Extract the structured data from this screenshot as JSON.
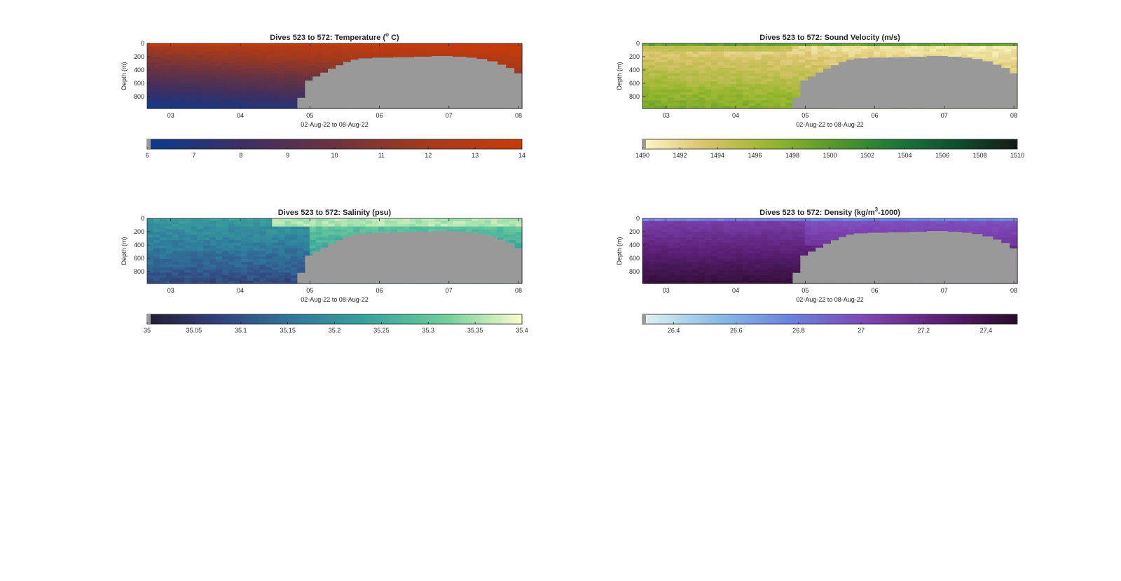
{
  "chart_data": [
    {
      "type": "heatmap",
      "title_prefix": "Dives 523 to 572: Temperature (",
      "title_sup": "o",
      "title_suffix": " C)",
      "ylabel": "Depth (m)",
      "xlabel": "02-Aug-22 to 08-Aug-22",
      "x_ticks": [
        "03",
        "04",
        "05",
        "06",
        "07",
        "08"
      ],
      "y_ticks": [
        "0",
        "200",
        "400",
        "600",
        "800"
      ],
      "x_range": [
        2.66,
        8.05
      ],
      "y_range": [
        0,
        980
      ],
      "colorbar": {
        "min": 6,
        "max": 14,
        "ticks": [
          "6",
          "7",
          "8",
          "9",
          "10",
          "11",
          "12",
          "13",
          "14"
        ],
        "colors": [
          "#0b3a8f",
          "#3b2f63",
          "#6a3340",
          "#a63a1c",
          "#c83b0a"
        ]
      },
      "field": "temperature"
    },
    {
      "type": "heatmap",
      "title_prefix": "Dives 523 to 572: Sound Velocity (m/s)",
      "title_sup": "",
      "title_suffix": "",
      "ylabel": "Depth (m)",
      "xlabel": "02-Aug-22 to 08-Aug-22",
      "x_ticks": [
        "03",
        "04",
        "05",
        "06",
        "07",
        "08"
      ],
      "y_ticks": [
        "0",
        "200",
        "400",
        "600",
        "800"
      ],
      "x_range": [
        2.66,
        8.05
      ],
      "y_range": [
        0,
        980
      ],
      "colorbar": {
        "min": 1490,
        "max": 1510,
        "ticks": [
          "1490",
          "1492",
          "1494",
          "1496",
          "1498",
          "1500",
          "1502",
          "1504",
          "1506",
          "1508",
          "1510"
        ],
        "colors": [
          "#fdf7c7",
          "#d9c36a",
          "#9ab82f",
          "#5a9a2a",
          "#1f7a3a",
          "#0e4f30",
          "#161a14"
        ]
      },
      "field": "sound"
    },
    {
      "type": "heatmap",
      "title_prefix": "Dives 523 to 572: Salinity (psu)",
      "title_sup": "",
      "title_suffix": "",
      "ylabel": "Depth (m)",
      "xlabel": "02-Aug-22 to 08-Aug-22",
      "x_ticks": [
        "03",
        "04",
        "05",
        "06",
        "07",
        "08"
      ],
      "y_ticks": [
        "0",
        "200",
        "400",
        "600",
        "800"
      ],
      "x_range": [
        2.66,
        8.05
      ],
      "y_range": [
        0,
        980
      ],
      "colorbar": {
        "min": 35,
        "max": 35.4,
        "ticks": [
          "35",
          "35.05",
          "35.1",
          "35.15",
          "35.2",
          "35.25",
          "35.3",
          "35.35",
          "35.4"
        ],
        "colors": [
          "#231d33",
          "#33437f",
          "#2f7b9c",
          "#3aa59c",
          "#6fcf9c",
          "#fdfcd0"
        ]
      },
      "field": "salinity"
    },
    {
      "type": "heatmap",
      "title_prefix": "Dives 523 to 572: Density (kg/m",
      "title_sup": "3",
      "title_suffix": "-1000)",
      "ylabel": "Depth (m)",
      "xlabel": "02-Aug-22 to 08-Aug-22",
      "x_ticks": [
        "03",
        "04",
        "05",
        "06",
        "07",
        "08"
      ],
      "y_ticks": [
        "0",
        "200",
        "400",
        "600",
        "800"
      ],
      "x_range": [
        2.66,
        8.05
      ],
      "y_range": [
        0,
        980
      ],
      "colorbar": {
        "min": 26.3,
        "max": 27.5,
        "ticks": [
          "26.4",
          "26.6",
          "26.8",
          "27",
          "27.2",
          "27.4"
        ],
        "colors": [
          "#e4f1f1",
          "#88bde6",
          "#6b7fe0",
          "#7e45b4",
          "#5a1f74",
          "#2a0b2b"
        ]
      },
      "field": "density"
    }
  ],
  "seabed": {
    "color": "#999999",
    "profile": [
      [
        2.66,
        1000
      ],
      [
        4.82,
        1000
      ],
      [
        4.82,
        820
      ],
      [
        4.93,
        820
      ],
      [
        4.93,
        560
      ],
      [
        5.04,
        560
      ],
      [
        5.04,
        500
      ],
      [
        5.15,
        500
      ],
      [
        5.15,
        440
      ],
      [
        5.26,
        440
      ],
      [
        5.26,
        380
      ],
      [
        5.37,
        380
      ],
      [
        5.37,
        330
      ],
      [
        5.48,
        330
      ],
      [
        5.48,
        280
      ],
      [
        5.59,
        280
      ],
      [
        5.59,
        245
      ],
      [
        5.7,
        245
      ],
      [
        5.7,
        225
      ],
      [
        5.9,
        225
      ],
      [
        5.9,
        215
      ],
      [
        6.2,
        215
      ],
      [
        6.2,
        210
      ],
      [
        6.5,
        210
      ],
      [
        6.5,
        200
      ],
      [
        6.75,
        200
      ],
      [
        6.75,
        190
      ],
      [
        7.05,
        190
      ],
      [
        7.05,
        200
      ],
      [
        7.25,
        200
      ],
      [
        7.25,
        215
      ],
      [
        7.4,
        215
      ],
      [
        7.4,
        235
      ],
      [
        7.55,
        235
      ],
      [
        7.55,
        270
      ],
      [
        7.7,
        270
      ],
      [
        7.7,
        320
      ],
      [
        7.82,
        320
      ],
      [
        7.82,
        370
      ],
      [
        7.94,
        370
      ],
      [
        7.94,
        450
      ],
      [
        8.05,
        450
      ],
      [
        8.05,
        1000
      ]
    ]
  }
}
